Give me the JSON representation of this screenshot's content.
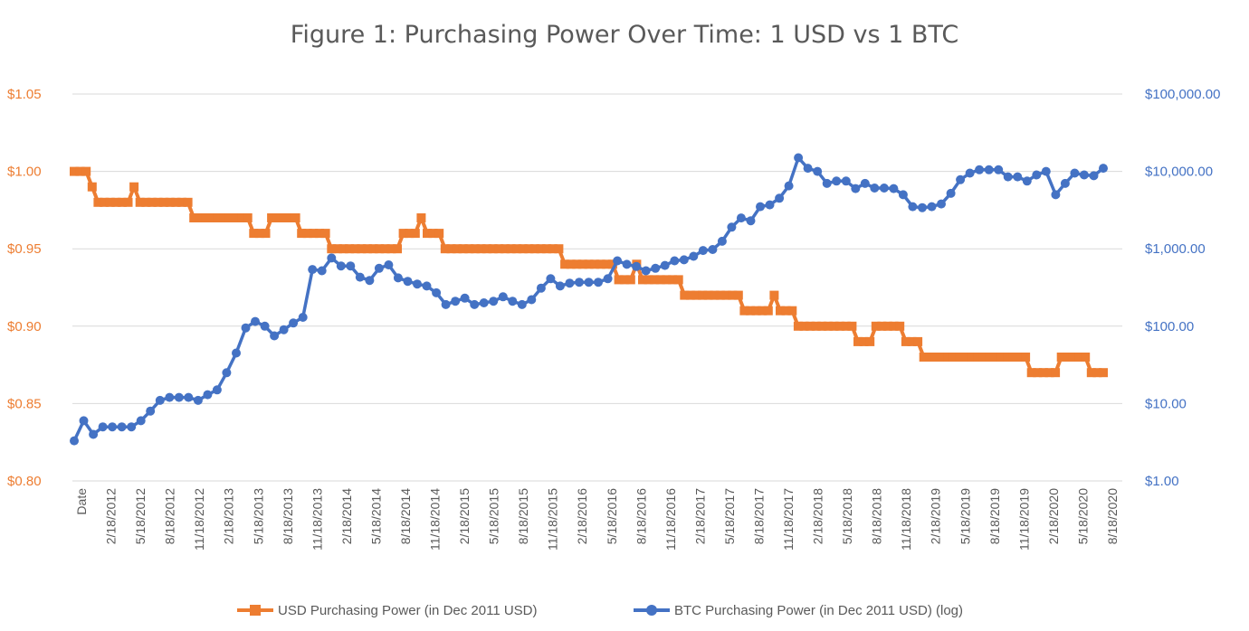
{
  "chart_data": {
    "type": "line",
    "title": "Figure 1: Purchasing Power Over Time: 1 USD vs 1 BTC",
    "left_axis": {
      "ylim": [
        0.8,
        1.05
      ],
      "ticks": [
        0.8,
        0.85,
        0.9,
        0.95,
        1.0,
        1.05
      ],
      "tick_labels": [
        "$0.80",
        "$0.85",
        "$0.90",
        "$0.95",
        "$1.00",
        "$1.05"
      ],
      "color": "#ED7D31"
    },
    "right_axis": {
      "scale": "log",
      "ylim": [
        1,
        100000
      ],
      "ticks": [
        1,
        10,
        100,
        1000,
        10000,
        100000
      ],
      "tick_labels": [
        "$1.00",
        "$10.00",
        "$100.00",
        "$1,000.00",
        "$10,000.00",
        "$100,000.00"
      ],
      "color": "#4472C4"
    },
    "x_tick_labels": [
      "Date",
      "2/18/2012",
      "5/18/2012",
      "8/18/2012",
      "11/18/2012",
      "2/18/2013",
      "5/18/2013",
      "8/18/2013",
      "11/18/2013",
      "2/18/2014",
      "5/18/2014",
      "8/18/2014",
      "11/18/2014",
      "2/18/2015",
      "5/18/2015",
      "8/18/2015",
      "11/18/2015",
      "2/18/2016",
      "5/18/2016",
      "8/18/2016",
      "11/18/2016",
      "2/18/2017",
      "5/18/2017",
      "8/18/2017",
      "11/18/2017",
      "2/18/2018",
      "5/18/2018",
      "8/18/2018",
      "11/18/2018",
      "2/18/2019",
      "5/18/2019",
      "8/18/2019",
      "11/18/2019",
      "2/18/2020",
      "5/18/2020",
      "8/18/2020"
    ],
    "series": [
      {
        "name": "USD Purchasing Power (in Dec 2011 USD)",
        "axis": "left",
        "color": "#ED7D31",
        "marker": "square",
        "values": [
          1.0,
          1.0,
          1.0,
          0.99,
          0.98,
          0.98,
          0.98,
          0.98,
          0.98,
          0.98,
          0.99,
          0.98,
          0.98,
          0.98,
          0.98,
          0.98,
          0.98,
          0.98,
          0.98,
          0.98,
          0.97,
          0.97,
          0.97,
          0.97,
          0.97,
          0.97,
          0.97,
          0.97,
          0.97,
          0.97,
          0.96,
          0.96,
          0.96,
          0.97,
          0.97,
          0.97,
          0.97,
          0.97,
          0.96,
          0.96,
          0.96,
          0.96,
          0.96,
          0.95,
          0.95,
          0.95,
          0.95,
          0.95,
          0.95,
          0.95,
          0.95,
          0.95,
          0.95,
          0.95,
          0.95,
          0.96,
          0.96,
          0.96,
          0.97,
          0.96,
          0.96,
          0.96,
          0.95,
          0.95,
          0.95,
          0.95,
          0.95,
          0.95,
          0.95,
          0.95,
          0.95,
          0.95,
          0.95,
          0.95,
          0.95,
          0.95,
          0.95,
          0.95,
          0.95,
          0.95,
          0.95,
          0.95,
          0.94,
          0.94,
          0.94,
          0.94,
          0.94,
          0.94,
          0.94,
          0.94,
          0.94,
          0.93,
          0.93,
          0.93,
          0.94,
          0.93,
          0.93,
          0.93,
          0.93,
          0.93,
          0.93,
          0.93,
          0.92,
          0.92,
          0.92,
          0.92,
          0.92,
          0.92,
          0.92,
          0.92,
          0.92,
          0.92,
          0.91,
          0.91,
          0.91,
          0.91,
          0.91,
          0.92,
          0.91,
          0.91,
          0.91,
          0.9,
          0.9,
          0.9,
          0.9,
          0.9,
          0.9,
          0.9,
          0.9,
          0.9,
          0.9,
          0.89,
          0.89,
          0.89,
          0.9,
          0.9,
          0.9,
          0.9,
          0.9,
          0.89,
          0.89,
          0.89,
          0.88,
          0.88,
          0.88,
          0.88,
          0.88,
          0.88,
          0.88,
          0.88,
          0.88,
          0.88,
          0.88,
          0.88,
          0.88,
          0.88,
          0.88,
          0.88,
          0.88,
          0.88,
          0.87,
          0.87,
          0.87,
          0.87,
          0.87,
          0.88,
          0.88,
          0.88,
          0.88,
          0.88,
          0.87,
          0.87,
          0.87
        ]
      },
      {
        "name": "BTC Purchasing Power (in Dec 2011 USD) (log)",
        "axis": "right",
        "color": "#4472C4",
        "marker": "circle",
        "values": [
          3.3,
          6,
          4,
          5,
          5,
          5,
          5,
          6,
          8,
          11,
          12,
          12,
          12,
          11,
          13,
          15,
          25,
          45,
          95,
          115,
          100,
          75,
          90,
          110,
          130,
          540,
          520,
          760,
          600,
          600,
          430,
          390,
          560,
          620,
          420,
          380,
          350,
          330,
          270,
          190,
          210,
          230,
          190,
          200,
          210,
          240,
          210,
          190,
          220,
          310,
          410,
          330,
          360,
          370,
          370,
          370,
          410,
          700,
          630,
          590,
          520,
          560,
          610,
          700,
          720,
          800,
          950,
          980,
          1250,
          1900,
          2500,
          2300,
          3500,
          3700,
          4500,
          6500,
          15000,
          11000,
          10000,
          7000,
          7500,
          7500,
          6000,
          7000,
          6100,
          6100,
          6000,
          5000,
          3500,
          3400,
          3500,
          3800,
          5200,
          7800,
          9500,
          10500,
          10500,
          10500,
          8500,
          8500,
          7500,
          9000,
          10000,
          5000,
          7000,
          9500,
          9000,
          8800,
          11000
        ]
      }
    ]
  }
}
